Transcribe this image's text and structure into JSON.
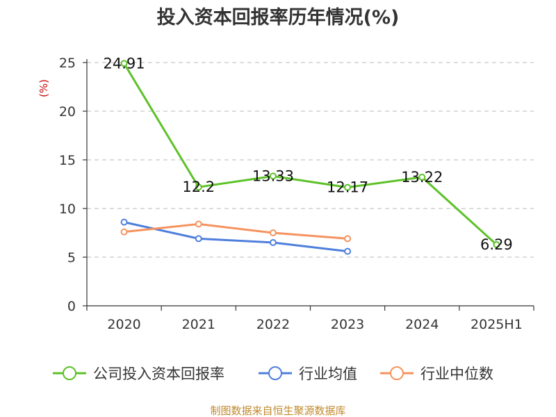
{
  "chart_data": {
    "type": "line",
    "title": "投入资本回报率历年情况(%)",
    "ylabel": "(%)",
    "xlabel": "",
    "categories": [
      "2020",
      "2021",
      "2022",
      "2023",
      "2024",
      "2025H1"
    ],
    "ylim": [
      0,
      25
    ],
    "yticks": [
      0,
      5,
      10,
      15,
      20,
      25
    ],
    "grid": true,
    "legend_position": "bottom",
    "series": [
      {
        "name": "公司投入资本回报率",
        "color": "#5cc127",
        "values": [
          24.91,
          12.2,
          13.33,
          12.17,
          13.22,
          6.29
        ],
        "labels": [
          "24.91",
          "12.2",
          "13.33",
          "12.17",
          "13.22",
          "6.29"
        ]
      },
      {
        "name": "行业均值",
        "color": "#4e7fdc",
        "values": [
          8.6,
          6.9,
          6.5,
          5.6,
          null,
          null
        ]
      },
      {
        "name": "行业中位数",
        "color": "#f6925e",
        "values": [
          7.6,
          8.4,
          7.5,
          6.9,
          null,
          null
        ]
      }
    ],
    "source": "制图数据来自恒生聚源数据库"
  }
}
